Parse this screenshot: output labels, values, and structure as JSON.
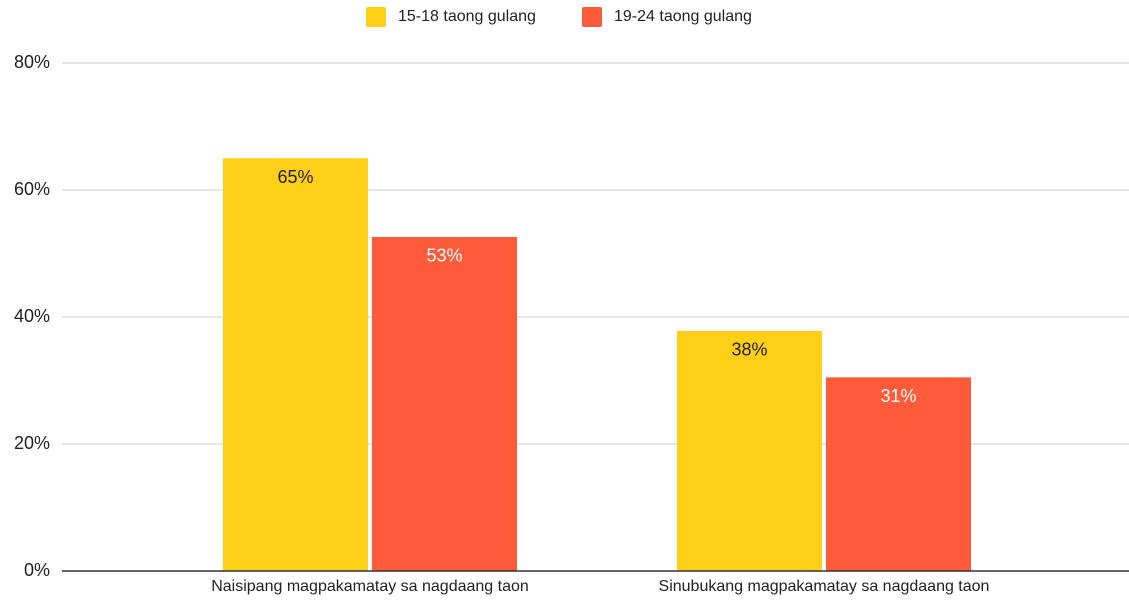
{
  "chart_data": {
    "type": "bar",
    "categories": [
      "Naisipang magpakamatay sa nagdaang taon",
      "Sinubukang magpakamatay sa nagdaang taon"
    ],
    "series": [
      {
        "name": "15-18 taong gulang",
        "color": "#fdd017",
        "values": [
          65,
          37.8
        ],
        "value_labels": [
          "65%",
          "38%"
        ]
      },
      {
        "name": "19-24 taong gulang",
        "color": "#ff5b3b",
        "values": [
          52.6,
          30.5
        ],
        "value_labels": [
          "53%",
          "31%"
        ]
      }
    ],
    "ylim": [
      0,
      80
    ],
    "yticks": [
      {
        "value": 0,
        "label": "0%"
      },
      {
        "value": 20,
        "label": "20%"
      },
      {
        "value": 40,
        "label": "40%"
      },
      {
        "value": 60,
        "label": "60%"
      },
      {
        "value": 80,
        "label": "80%"
      }
    ],
    "grid": true,
    "legend": "top"
  }
}
